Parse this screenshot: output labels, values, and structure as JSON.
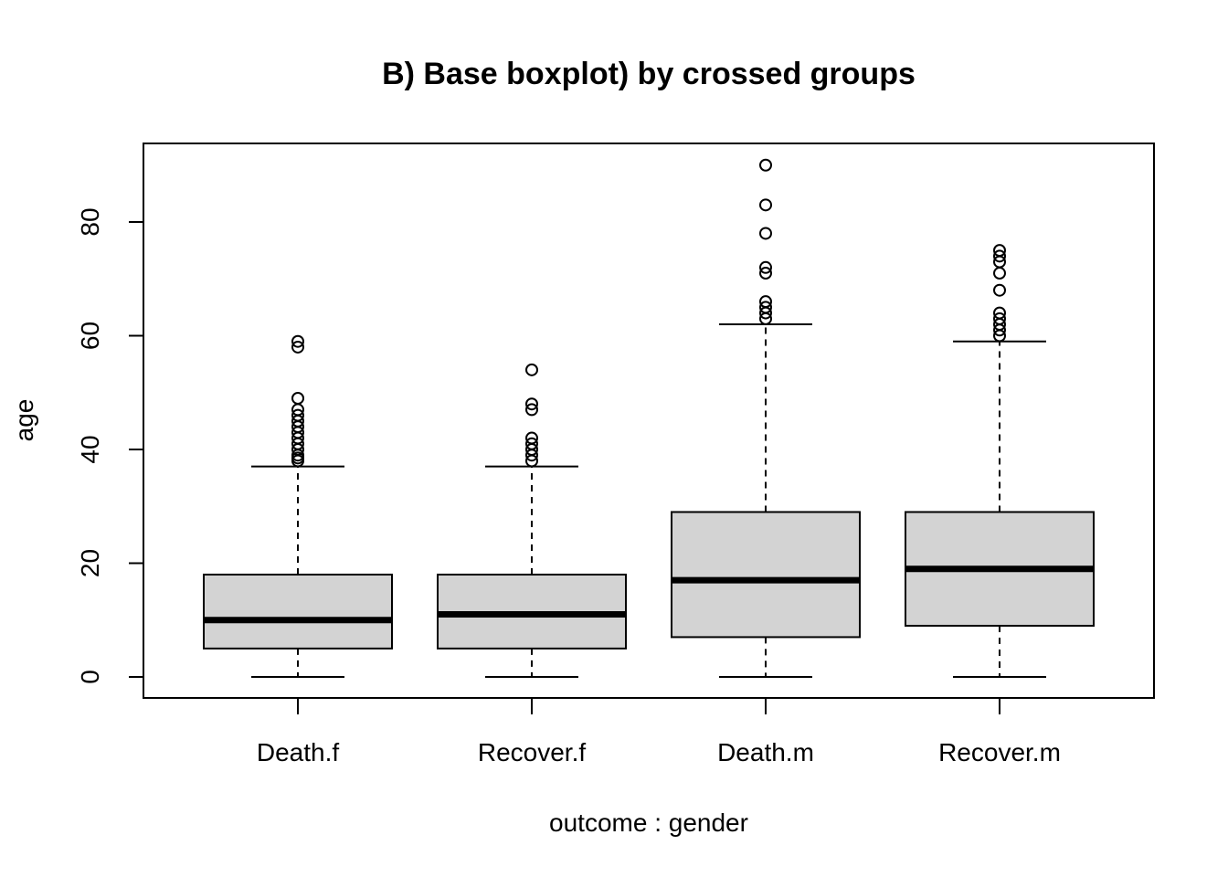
{
  "chart_data": {
    "type": "boxplot",
    "title": "B) Base boxplot) by crossed groups",
    "xlabel": "outcome : gender",
    "ylabel": "age",
    "ylim": [
      0,
      90
    ],
    "yticks": [
      0,
      20,
      40,
      60,
      80
    ],
    "grid": false,
    "colors": {
      "box_fill": "#d3d3d3",
      "stroke": "#000000"
    },
    "categories": [
      "Death.f",
      "Recover.f",
      "Death.m",
      "Recover.m"
    ],
    "boxes": [
      {
        "name": "Death.f",
        "whisker_low": 0,
        "q1": 5,
        "median": 10,
        "q3": 18,
        "whisker_high": 37,
        "outliers": [
          38,
          38.5,
          39,
          40,
          41,
          42,
          43,
          44,
          45,
          46,
          47,
          49,
          58,
          59
        ]
      },
      {
        "name": "Recover.f",
        "whisker_low": 0,
        "q1": 5,
        "median": 11,
        "q3": 18,
        "whisker_high": 37,
        "outliers": [
          38,
          39,
          40,
          41,
          42,
          47,
          48,
          54
        ]
      },
      {
        "name": "Death.m",
        "whisker_low": 0,
        "q1": 7,
        "median": 17,
        "q3": 29,
        "whisker_high": 62,
        "outliers": [
          63,
          64,
          65,
          66,
          71,
          72,
          78,
          83,
          90
        ]
      },
      {
        "name": "Recover.m",
        "whisker_low": 0,
        "q1": 9,
        "median": 19,
        "q3": 29,
        "whisker_high": 59,
        "outliers": [
          60,
          61,
          62,
          63,
          64,
          68,
          71,
          73,
          74,
          75
        ]
      }
    ]
  }
}
